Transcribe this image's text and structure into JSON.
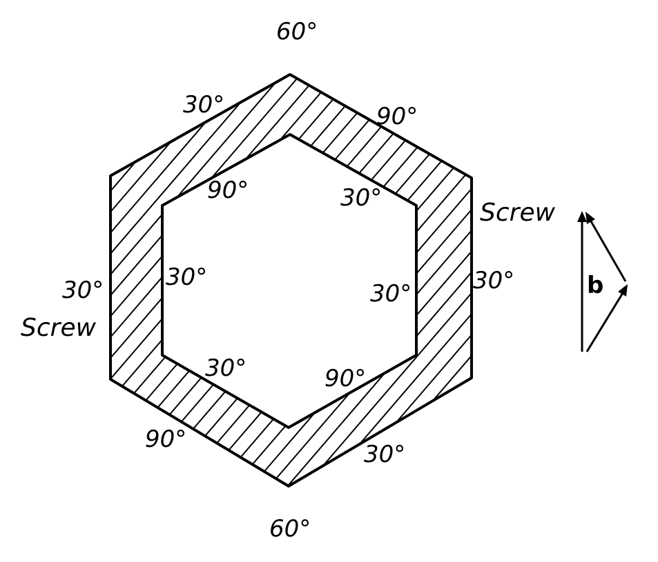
{
  "labels": {
    "angle_60": "60°",
    "angle_30": "30°",
    "angle_90": "90°",
    "screw": "Screw",
    "burgers_vector": "b"
  },
  "colors": {
    "ink": "#000000",
    "background": "#ffffff"
  }
}
